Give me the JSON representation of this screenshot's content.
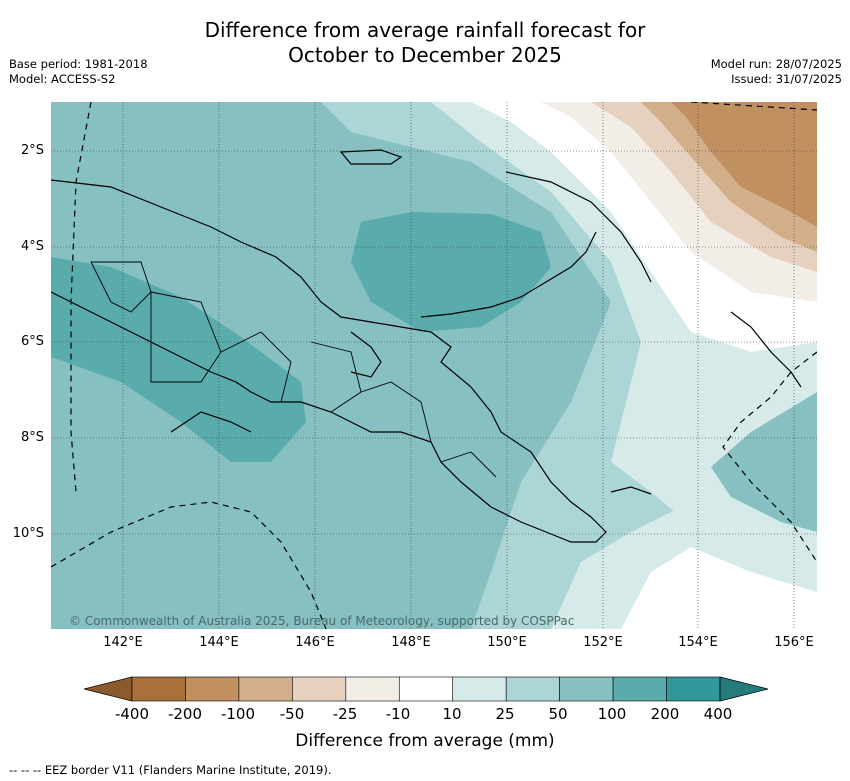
{
  "title_line1": "Difference from average rainfall forecast for",
  "title_line2": "October to December 2025",
  "base_period": "Base period: 1981-2018",
  "model": "Model: ACCESS-S2",
  "model_run": "Model run: 28/07/2025",
  "issued": "Issued: 31/07/2025",
  "lat_labels": [
    "2°S",
    "4°S",
    "6°S",
    "8°S",
    "10°S"
  ],
  "lon_labels": [
    "142°E",
    "144°E",
    "146°E",
    "148°E",
    "150°E",
    "152°E",
    "154°E",
    "156°E"
  ],
  "copyright": "© Commonwealth of Australia 2025, Bureau of Meteorology, supported by COSPPac",
  "colorbar": {
    "ticks": [
      "-400",
      "-200",
      "-100",
      "-50",
      "-25",
      "-10",
      "10",
      "25",
      "50",
      "100",
      "200",
      "400"
    ],
    "colors": [
      "#a8703a",
      "#c09060",
      "#d2ae8a",
      "#e6d1be",
      "#f3ede8",
      "#ffffff",
      "#d6eae9",
      "#acd5d5",
      "#86c0c0",
      "#5aabab",
      "#32999a"
    ],
    "extend_low_color": "#8c5a2b",
    "extend_high_color": "#267b7b",
    "label": "Difference from average (mm)"
  },
  "legend_text": "-- -- -- EEZ border V11 (Flanders Marine Institute, 2019)."
}
